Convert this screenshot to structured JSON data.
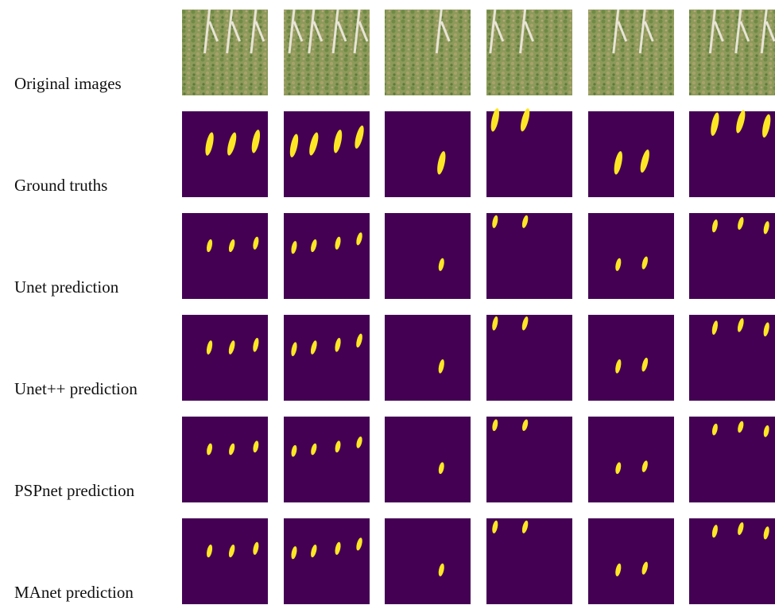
{
  "rows": [
    {
      "label": "Original images"
    },
    {
      "label": "Ground truths"
    },
    {
      "label": "Unet prediction"
    },
    {
      "label": "Unet++ prediction"
    },
    {
      "label": "PSPnet prediction"
    },
    {
      "label": "MAnet prediction"
    }
  ]
}
